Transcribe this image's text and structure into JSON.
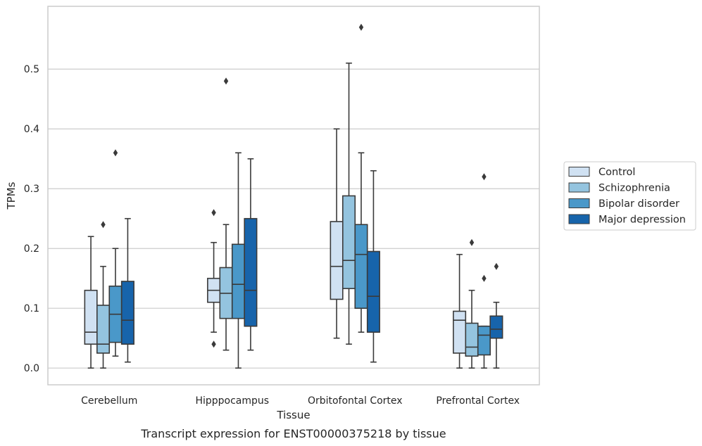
{
  "chart_data": {
    "type": "boxplot",
    "caption": "Transcript expression for ENST00000375218 by tissue",
    "xlabel": "Tissue",
    "ylabel": "TPMs",
    "ylim": [
      -0.028,
      0.605
    ],
    "yticks": [
      0.0,
      0.1,
      0.2,
      0.3,
      0.4,
      0.5
    ],
    "ytick_labels": [
      "0.0",
      "0.1",
      "0.2",
      "0.3",
      "0.4",
      "0.5"
    ],
    "grid": "horizontal",
    "legend_position": "right",
    "categories": [
      "Cerebellum",
      "Hipppocampus",
      "Orbitofontal Cortex",
      "Prefrontal Cortex"
    ],
    "series": [
      {
        "name": "Control",
        "color": "#d0e1f2",
        "boxes": [
          {
            "whislo": 0.0,
            "q1": 0.04,
            "med": 0.06,
            "q3": 0.13,
            "whishi": 0.22,
            "fliers": []
          },
          {
            "whislo": 0.06,
            "q1": 0.11,
            "med": 0.13,
            "q3": 0.15,
            "whishi": 0.21,
            "fliers": [
              0.26,
              0.04
            ]
          },
          {
            "whislo": 0.05,
            "q1": 0.115,
            "med": 0.17,
            "q3": 0.245,
            "whishi": 0.4,
            "fliers": []
          },
          {
            "whislo": 0.0,
            "q1": 0.025,
            "med": 0.08,
            "q3": 0.095,
            "whishi": 0.19,
            "fliers": []
          }
        ]
      },
      {
        "name": "Schizophrenia",
        "color": "#94c4df",
        "boxes": [
          {
            "whislo": 0.0,
            "q1": 0.025,
            "med": 0.04,
            "q3": 0.105,
            "whishi": 0.17,
            "fliers": [
              0.24
            ]
          },
          {
            "whislo": 0.03,
            "q1": 0.083,
            "med": 0.125,
            "q3": 0.168,
            "whishi": 0.24,
            "fliers": [
              0.48
            ]
          },
          {
            "whislo": 0.04,
            "q1": 0.133,
            "med": 0.18,
            "q3": 0.288,
            "whishi": 0.51,
            "fliers": []
          },
          {
            "whislo": 0.0,
            "q1": 0.02,
            "med": 0.035,
            "q3": 0.075,
            "whishi": 0.13,
            "fliers": [
              0.21
            ]
          }
        ]
      },
      {
        "name": "Bipolar disorder",
        "color": "#4a98c9",
        "boxes": [
          {
            "whislo": 0.02,
            "q1": 0.043,
            "med": 0.09,
            "q3": 0.137,
            "whishi": 0.2,
            "fliers": [
              0.36
            ]
          },
          {
            "whislo": 0.0,
            "q1": 0.083,
            "med": 0.14,
            "q3": 0.207,
            "whishi": 0.36,
            "fliers": []
          },
          {
            "whislo": 0.06,
            "q1": 0.1,
            "med": 0.19,
            "q3": 0.24,
            "whishi": 0.36,
            "fliers": [
              0.57
            ]
          },
          {
            "whislo": 0.0,
            "q1": 0.022,
            "med": 0.055,
            "q3": 0.07,
            "whishi": 0.07,
            "fliers": [
              0.15,
              0.32
            ]
          }
        ]
      },
      {
        "name": "Major depression",
        "color": "#1764ab",
        "boxes": [
          {
            "whislo": 0.01,
            "q1": 0.04,
            "med": 0.08,
            "q3": 0.145,
            "whishi": 0.25,
            "fliers": []
          },
          {
            "whislo": 0.03,
            "q1": 0.07,
            "med": 0.13,
            "q3": 0.25,
            "whishi": 0.35,
            "fliers": []
          },
          {
            "whislo": 0.01,
            "q1": 0.06,
            "med": 0.12,
            "q3": 0.195,
            "whishi": 0.33,
            "fliers": []
          },
          {
            "whislo": 0.0,
            "q1": 0.05,
            "med": 0.065,
            "q3": 0.087,
            "whishi": 0.11,
            "fliers": [
              0.17
            ]
          }
        ]
      }
    ]
  },
  "colors": {
    "edge": "#3a3a3a",
    "grid": "#cccccc",
    "frame": "#cccccc"
  }
}
